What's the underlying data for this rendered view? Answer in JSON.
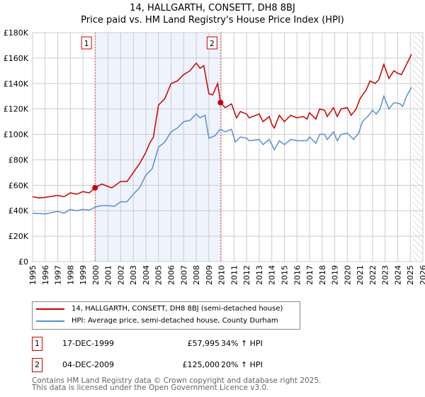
{
  "chart_data": {
    "type": "line",
    "title": "14, HALLGARTH, CONSETT, DH8 8BJ",
    "subtitle": "Price paid vs. HM Land Registry's House Price Index (HPI)",
    "xlim": [
      1995,
      2026
    ],
    "ylim": [
      0,
      180000
    ],
    "x_ticks": [
      "1995",
      "1996",
      "1997",
      "1998",
      "1999",
      "2000",
      "2001",
      "2002",
      "2003",
      "2004",
      "2005",
      "2006",
      "2007",
      "2008",
      "2009",
      "2010",
      "2011",
      "2012",
      "2013",
      "2014",
      "2015",
      "2016",
      "2017",
      "2018",
      "2019",
      "2020",
      "2021",
      "2022",
      "2023",
      "2024",
      "2025",
      "2026"
    ],
    "y_ticks": [
      {
        "v": 0,
        "label": "£0"
      },
      {
        "v": 20000,
        "label": "£20K"
      },
      {
        "v": 40000,
        "label": "£40K"
      },
      {
        "v": 60000,
        "label": "£60K"
      },
      {
        "v": 80000,
        "label": "£80K"
      },
      {
        "v": 100000,
        "label": "£100K"
      },
      {
        "v": 120000,
        "label": "£120K"
      },
      {
        "v": 140000,
        "label": "£140K"
      },
      {
        "v": 160000,
        "label": "£160K"
      },
      {
        "v": 180000,
        "label": "£180K"
      }
    ],
    "grid": true,
    "shaded_range": [
      1999.96,
      2009.93
    ],
    "hatched_from": 2025.2,
    "series": [
      {
        "name": "14, HALLGARTH, CONSETT, DH8 8BJ (semi-detached house)",
        "color": "#cc0000",
        "x": [
          1995,
          1995.5,
          1996,
          1997,
          1997.5,
          1998,
          1998.5,
          1999,
          1999.5,
          1999.96,
          2000.5,
          2001,
          2001.3,
          2002,
          2002.5,
          2003,
          2003.5,
          2004,
          2004.3,
          2004.6,
          2005,
          2005.5,
          2006,
          2006.5,
          2007,
          2007.5,
          2008,
          2008.3,
          2008.6,
          2009,
          2009.3,
          2009.7,
          2009.93,
          2010.3,
          2010.8,
          2011.2,
          2011.5,
          2012,
          2012.2,
          2013,
          2013.3,
          2013.8,
          2014,
          2014.2,
          2014.6,
          2015,
          2015.5,
          2016,
          2016.5,
          2016.8,
          2017,
          2017.5,
          2017.8,
          2018.2,
          2018.4,
          2018.9,
          2019.2,
          2019.5,
          2020,
          2020.3,
          2020.7,
          2021,
          2021.5,
          2021.8,
          2022.2,
          2022.5,
          2022.9,
          2023.3,
          2023.7,
          2024,
          2024.3,
          2024.6,
          2025.1
        ],
        "y": [
          51,
          50,
          50.5,
          52,
          51,
          54,
          53,
          55,
          54,
          58,
          61,
          59,
          58,
          63,
          63,
          70,
          77,
          86,
          93,
          98,
          123,
          128,
          140,
          142,
          147,
          150,
          156,
          152,
          154,
          132,
          131,
          140,
          125,
          121,
          124,
          113,
          118,
          116,
          113,
          116,
          110,
          114,
          108,
          105,
          115,
          110,
          115,
          113,
          114,
          112,
          117,
          112,
          120,
          119,
          114,
          121,
          114,
          120,
          121,
          115,
          120,
          128,
          135,
          142,
          140,
          143,
          155,
          144,
          150,
          148,
          147,
          153,
          163
        ]
      },
      {
        "name": "HPI: Average price, semi-detached house, County Durham",
        "color": "#5b8fd4",
        "x": [
          1995,
          1996,
          1997,
          1997.5,
          1998,
          1998.5,
          1999,
          1999.5,
          2000,
          2000.5,
          2001,
          2001.5,
          2002,
          2002.5,
          2003,
          2003.5,
          2004,
          2004.5,
          2005,
          2005.5,
          2006,
          2006.5,
          2007,
          2007.5,
          2008,
          2008.3,
          2008.7,
          2009,
          2009.5,
          2009.9,
          2010.3,
          2010.8,
          2011.1,
          2011.5,
          2012,
          2012.2,
          2013,
          2013.3,
          2013.8,
          2014.2,
          2014.6,
          2015,
          2015.5,
          2016,
          2016.8,
          2017,
          2017.5,
          2017.8,
          2018.2,
          2018.4,
          2018.9,
          2019.2,
          2019.5,
          2020,
          2020.5,
          2020.9,
          2021.2,
          2021.7,
          2022,
          2022.3,
          2022.6,
          2022.9,
          2023.3,
          2023.7,
          2024.2,
          2024.4,
          2024.7,
          2025.1
        ],
        "y": [
          38,
          37.5,
          39.5,
          38,
          41,
          40,
          41,
          40.5,
          43,
          44,
          44,
          43.5,
          47,
          47,
          53,
          58,
          68,
          73,
          90,
          94,
          102,
          105,
          110,
          111,
          116,
          113,
          115,
          97,
          99,
          104,
          102,
          104,
          94,
          98,
          97,
          95,
          96,
          92,
          96,
          88,
          95,
          92,
          96,
          95,
          95,
          98,
          93,
          100,
          100,
          96,
          102,
          95,
          100,
          101,
          96,
          101,
          110,
          115,
          119,
          116,
          120,
          130,
          120,
          125,
          124,
          122,
          130,
          137
        ]
      }
    ],
    "y_units": 1000,
    "markers": [
      {
        "label": "1",
        "x": 1999.96,
        "y": 57995
      },
      {
        "label": "2",
        "x": 2009.93,
        "y": 125000
      }
    ]
  },
  "legend": {
    "items": [
      "14, HALLGARTH, CONSETT, DH8 8BJ (semi-detached house)",
      "HPI: Average price, semi-detached house, County Durham"
    ]
  },
  "transactions": [
    {
      "num": "1",
      "date": "17-DEC-1999",
      "price": "£57,995",
      "hpi": "34% ↑ HPI"
    },
    {
      "num": "2",
      "date": "04-DEC-2009",
      "price": "£125,000",
      "hpi": "20% ↑ HPI"
    }
  ],
  "footer": {
    "line1": "Contains HM Land Registry data © Crown copyright and database right 2025.",
    "line2": "This data is licensed under the Open Government Licence v3.0."
  }
}
